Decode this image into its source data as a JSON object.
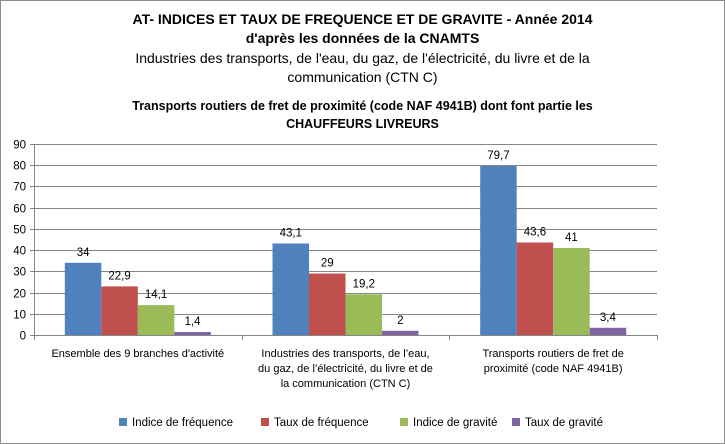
{
  "titles": {
    "line1": "AT- INDICES ET TAUX DE FREQUENCE ET DE GRAVITE - Année 2014",
    "line2": "d'après les données de la CNAMTS",
    "line3": "Industries des transports, de l'eau, du gaz, de l'électricité, du livre et de la",
    "line4": "communication  (CTN C)",
    "line5": "Transports routiers de fret de proximité (code NAF 4941B)  dont font partie les",
    "line6": "CHAUFFEURS LIVREURS"
  },
  "chart_data": {
    "type": "bar",
    "categories": [
      [
        "Ensemble des 9 branches d'activité"
      ],
      [
        "Industries des transports, de l’eau,",
        "du gaz, de l’électricité, du livre et de",
        "la communication (CTN C)"
      ],
      [
        "Transports routiers de fret de",
        "proximité (code NAF 4941B)"
      ]
    ],
    "series": [
      {
        "name": "Indice de fréquence",
        "color": "#4f81bd",
        "values": [
          34,
          43.1,
          79.7
        ],
        "labels": [
          "34",
          "43,1",
          "79,7"
        ]
      },
      {
        "name": "Taux de fréquence",
        "color": "#c0504d",
        "values": [
          22.9,
          29,
          43.6
        ],
        "labels": [
          "22,9",
          "29",
          "43,6"
        ]
      },
      {
        "name": "Indice de gravité",
        "color": "#9bbb59",
        "values": [
          14.1,
          19.2,
          41
        ],
        "labels": [
          "14,1",
          "19,2",
          "41"
        ]
      },
      {
        "name": "Taux de gravité",
        "color": "#8064a2",
        "values": [
          1.4,
          2,
          3.4
        ],
        "labels": [
          "1,4",
          "2",
          "3,4"
        ]
      }
    ],
    "ylim": [
      0,
      90
    ],
    "yticks": [
      "0",
      "10",
      "20",
      "30",
      "40",
      "50",
      "60",
      "70",
      "80",
      "90"
    ],
    "grid": true,
    "legend": "bottom"
  }
}
